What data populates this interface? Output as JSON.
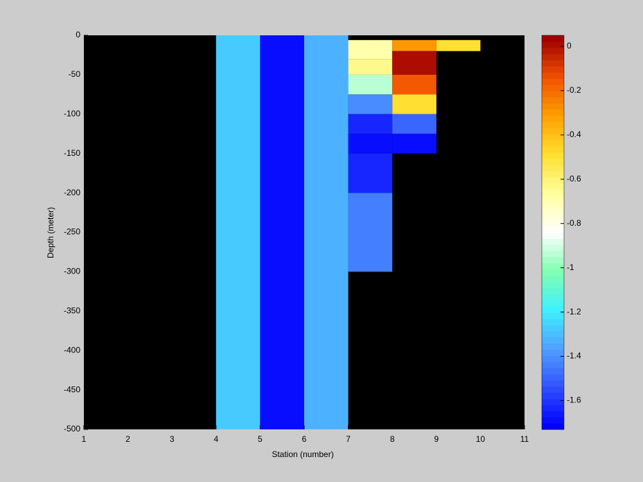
{
  "chart_data": {
    "type": "heatmap",
    "xlabel": "Station (number)",
    "ylabel": "Depth (meter)",
    "xlim": [
      1,
      11
    ],
    "ylim": [
      -500,
      0
    ],
    "xticks": [
      1,
      2,
      3,
      4,
      5,
      6,
      7,
      8,
      9,
      10,
      11
    ],
    "yticks": [
      0,
      -50,
      -100,
      -150,
      -200,
      -250,
      -300,
      -350,
      -400,
      -450,
      -500
    ],
    "background": "#000000",
    "clim": [
      -1.73,
      0.05
    ],
    "cticks": [
      0,
      -0.2,
      -0.4,
      -0.6,
      -0.8,
      -1,
      -1.2,
      -1.4,
      -1.6
    ],
    "colormap": [
      "#0000ff",
      "#3050ff",
      "#50a0ff",
      "#40f0ff",
      "#80ffb0",
      "#ffffff",
      "#ffffa0",
      "#ffe030",
      "#ffa000",
      "#f05000",
      "#a00000"
    ],
    "cells": [
      {
        "x": [
          4,
          5
        ],
        "y": [
          0,
          -500
        ],
        "value": -1.28
      },
      {
        "x": [
          5,
          6
        ],
        "y": [
          0,
          -500
        ],
        "value": -1.68
      },
      {
        "x": [
          6,
          7
        ],
        "y": [
          0,
          -500
        ],
        "value": -1.33
      },
      {
        "x": [
          7,
          8
        ],
        "y": [
          -6,
          -30
        ],
        "value": -0.68
      },
      {
        "x": [
          7,
          8
        ],
        "y": [
          -30,
          -50
        ],
        "value": -0.62
      },
      {
        "x": [
          7,
          8
        ],
        "y": [
          -50,
          -75
        ],
        "value": -0.95
      },
      {
        "x": [
          7,
          8
        ],
        "y": [
          -75,
          -100
        ],
        "value": -1.42
      },
      {
        "x": [
          7,
          8
        ],
        "y": [
          -100,
          -125
        ],
        "value": -1.62
      },
      {
        "x": [
          7,
          8
        ],
        "y": [
          -125,
          -150
        ],
        "value": -1.69
      },
      {
        "x": [
          7,
          8
        ],
        "y": [
          -150,
          -200
        ],
        "value": -1.62
      },
      {
        "x": [
          7,
          8
        ],
        "y": [
          -200,
          -300
        ],
        "value": -1.45
      },
      {
        "x": [
          8,
          9
        ],
        "y": [
          -6,
          -20
        ],
        "value": -0.3
      },
      {
        "x": [
          8,
          9
        ],
        "y": [
          -20,
          -50
        ],
        "value": 0.0
      },
      {
        "x": [
          8,
          9
        ],
        "y": [
          -50,
          -75
        ],
        "value": -0.17
      },
      {
        "x": [
          8,
          9
        ],
        "y": [
          -75,
          -100
        ],
        "value": -0.5
      },
      {
        "x": [
          8,
          9
        ],
        "y": [
          -100,
          -125
        ],
        "value": -1.5
      },
      {
        "x": [
          8,
          9
        ],
        "y": [
          -125,
          -150
        ],
        "value": -1.68
      },
      {
        "x": [
          9,
          10
        ],
        "y": [
          -6,
          -20
        ],
        "value": -0.48
      }
    ]
  }
}
